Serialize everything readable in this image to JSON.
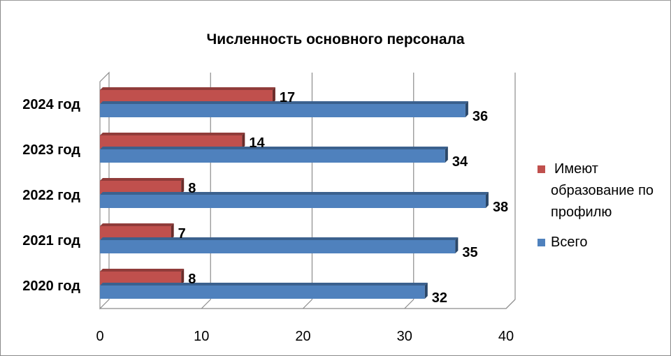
{
  "chart_data": {
    "type": "bar",
    "orientation": "horizontal",
    "style": "3d-clustered",
    "title": "Численность основного персонала",
    "categories": [
      "2020 год",
      "2021 год",
      "2022 год",
      "2023 год",
      "2024 год"
    ],
    "series": [
      {
        "name": "Всего",
        "values": [
          32,
          35,
          38,
          34,
          36
        ],
        "color": "#4f81bd"
      },
      {
        "name": "Имеют образование по профилю",
        "values": [
          8,
          7,
          8,
          14,
          17
        ],
        "color": "#c0504d"
      }
    ],
    "xlim": [
      0,
      40
    ],
    "xticks": [
      0,
      10,
      20,
      30,
      40
    ],
    "grid": true,
    "legend_position": "right",
    "data_labels": true
  },
  "legend": {
    "items": [
      {
        "lines": [
          "Имеют",
          "образование по",
          "профилю"
        ],
        "color": "#c0504d"
      },
      {
        "lines": [
          "Всего"
        ],
        "color": "#4f81bd"
      }
    ]
  }
}
